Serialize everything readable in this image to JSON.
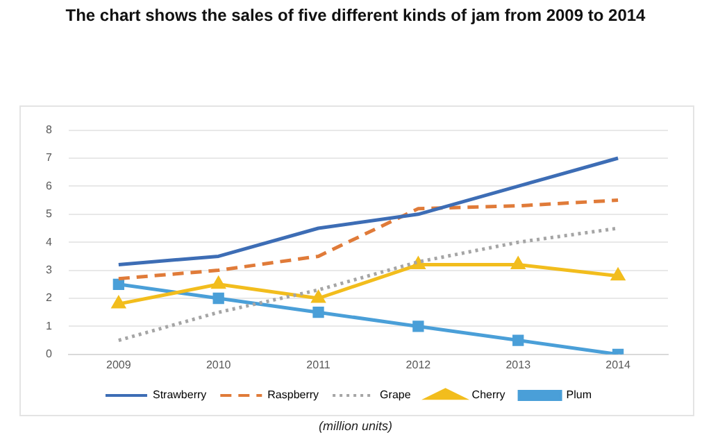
{
  "chart_data": {
    "type": "line",
    "title": "The chart shows the sales of five different kinds of jam from 2009 to 2014",
    "xlabel": "(million units)",
    "categories": [
      "2009",
      "2010",
      "2011",
      "2012",
      "2013",
      "2014"
    ],
    "series": [
      {
        "name": "Strawberry",
        "color": "#3d6db5",
        "values": [
          3.2,
          3.5,
          4.5,
          5,
          6,
          7
        ],
        "marker": "none",
        "line_style": "solid"
      },
      {
        "name": "Raspberry",
        "color": "#e07b39",
        "values": [
          2.7,
          3,
          3.5,
          5.2,
          5.3,
          5.5
        ],
        "marker": "none",
        "line_style": "dashed"
      },
      {
        "name": "Grape",
        "color": "#a5a5a5",
        "values": [
          0.5,
          1.5,
          2.3,
          3.3,
          4,
          4.5
        ],
        "marker": "none",
        "line_style": "dotted"
      },
      {
        "name": "Cherry",
        "color": "#f2bd1d",
        "values": [
          1.8,
          2.5,
          2,
          3.2,
          3.2,
          2.8
        ],
        "marker": "triangle",
        "line_style": "solid"
      },
      {
        "name": "Plum",
        "color": "#4a9fd8",
        "values": [
          2.5,
          2,
          1.5,
          1,
          0.5,
          0
        ],
        "marker": "square",
        "line_style": "solid"
      }
    ],
    "ylim": [
      0,
      8
    ],
    "yticks": [
      0,
      1,
      2,
      3,
      4,
      5,
      6,
      7,
      8
    ],
    "grid": "y",
    "legend": "bottom"
  }
}
